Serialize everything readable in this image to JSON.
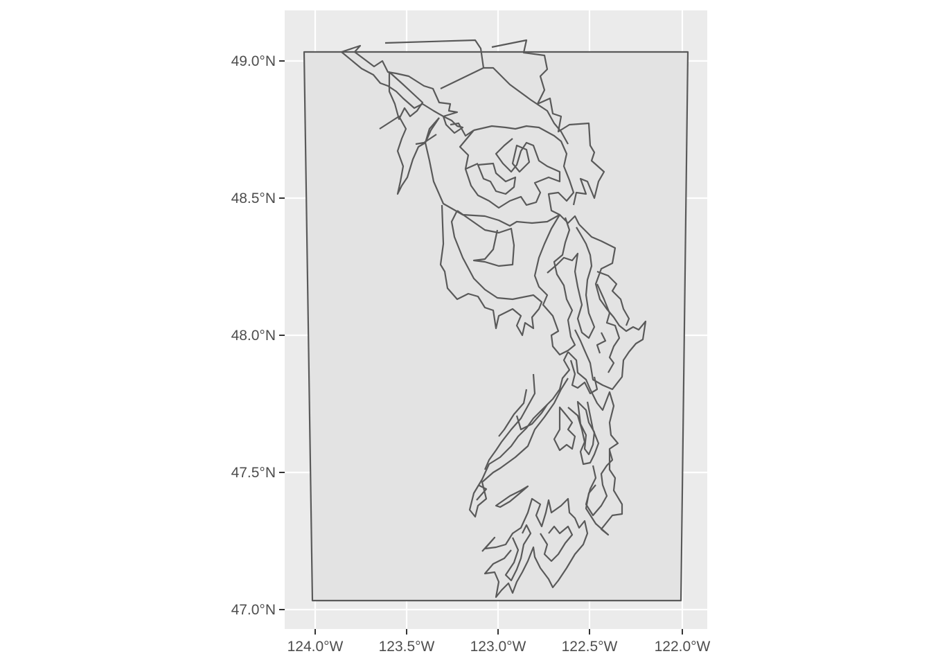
{
  "map": {
    "panel_color": "#ebebeb",
    "region_fill": "#e3e3e3",
    "outline_color": "#595959",
    "grid_color": "#ffffff",
    "y_axis": {
      "tick_labels": [
        "47.0°N",
        "47.5°N",
        "48.0°N",
        "48.5°N",
        "49.0°N"
      ]
    },
    "x_axis": {
      "tick_labels": [
        "124.0°W",
        "123.5°W",
        "123.0°W",
        "122.5°W",
        "122.0°W"
      ]
    }
  }
}
